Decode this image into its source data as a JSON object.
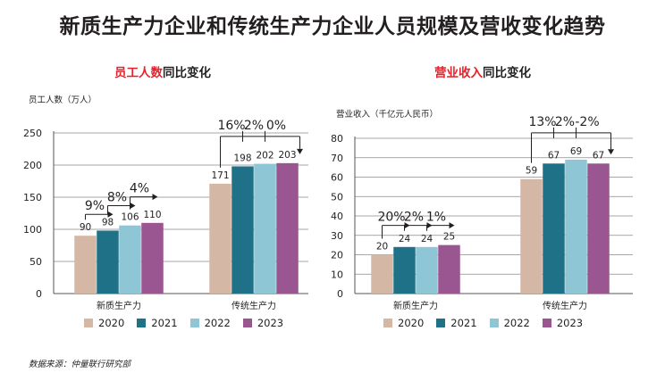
{
  "title": "新质生产力企业和传统生产力企业人员规模及营收变化趋势",
  "source": "数据来源：仲量联行研究部",
  "legend": [
    {
      "label": "2020",
      "color": "#d5b7a5"
    },
    {
      "label": "2021",
      "color": "#1f7188"
    },
    {
      "label": "2022",
      "color": "#8ec6d6"
    },
    {
      "label": "2023",
      "color": "#9a5690"
    }
  ],
  "left_panel": {
    "title_highlight": "员工人数",
    "title_rest": "同比变化",
    "unit": "员工人数（万人）"
  },
  "right_panel": {
    "title_highlight": "营业收入",
    "title_rest": "同比变化",
    "unit": "营业收入（千亿元人民币）"
  },
  "chart_data": [
    {
      "type": "bar",
      "title": "员工人数同比变化",
      "ylabel": "员工人数（万人）",
      "ylim": [
        0,
        250
      ],
      "yticks": [
        0,
        50,
        100,
        150,
        200,
        250
      ],
      "grid": true,
      "categories": [
        "新质生产力",
        "传统生产力"
      ],
      "series": [
        {
          "name": "2020",
          "values": [
            90,
            171
          ]
        },
        {
          "name": "2021",
          "values": [
            98,
            198
          ]
        },
        {
          "name": "2022",
          "values": [
            106,
            202
          ]
        },
        {
          "name": "2023",
          "values": [
            110,
            203
          ]
        }
      ],
      "growth_labels": [
        [
          "9%",
          "8%",
          "4%"
        ],
        [
          "16%",
          "2%",
          "0%"
        ]
      ]
    },
    {
      "type": "bar",
      "title": "营业收入同比变化",
      "ylabel": "营业收入（千亿元人民币）",
      "ylim": [
        0,
        80
      ],
      "yticks": [
        0,
        10,
        20,
        30,
        40,
        50,
        60,
        70,
        80
      ],
      "grid": true,
      "categories": [
        "新质生产力",
        "传统生产力"
      ],
      "series": [
        {
          "name": "2020",
          "values": [
            20,
            59
          ]
        },
        {
          "name": "2021",
          "values": [
            24,
            67
          ]
        },
        {
          "name": "2022",
          "values": [
            24,
            69
          ]
        },
        {
          "name": "2023",
          "values": [
            25,
            67
          ]
        }
      ],
      "growth_labels": [
        [
          "20%",
          "2%",
          "1%"
        ],
        [
          "13%",
          "2%",
          "-2%"
        ]
      ]
    }
  ]
}
